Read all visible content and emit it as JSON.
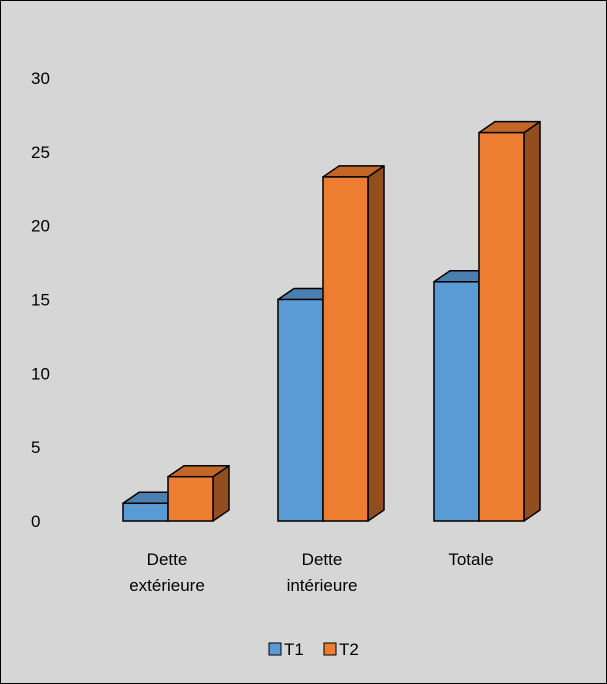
{
  "chart_data": {
    "type": "bar",
    "style": "3d-clustered-column",
    "categories": [
      "Dette extérieure",
      "Dette intérieure",
      "Totale"
    ],
    "category_lines": [
      [
        "Dette",
        "extérieure"
      ],
      [
        "Dette",
        "intérieure"
      ],
      [
        "Totale"
      ]
    ],
    "series": [
      {
        "name": "T1",
        "values": [
          1.2,
          15,
          16.2
        ],
        "color": "#5b9bd5"
      },
      {
        "name": "T2",
        "values": [
          3,
          23.3,
          26.3
        ],
        "color": "#ed7d31"
      }
    ],
    "yticks": [
      0,
      5,
      10,
      15,
      20,
      25,
      30
    ],
    "ylim": [
      0,
      30
    ],
    "grid": false,
    "legend_position": "bottom",
    "background": "#d6d6d6"
  }
}
